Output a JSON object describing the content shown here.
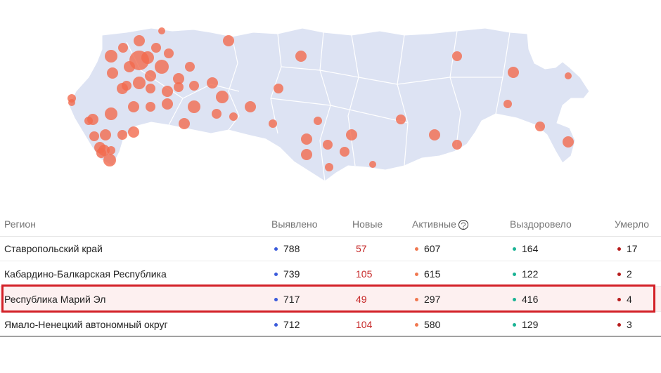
{
  "colors": {
    "map_fill": "#dde3f3",
    "bubble": "#f26a4e",
    "confirmed": "#3b5bdb",
    "new": "#c62828",
    "active": "#f07850",
    "recovered": "#1ab394",
    "deaths": "#b71c1c",
    "highlight": "#d32027"
  },
  "icons": {
    "help": "question-circle-icon"
  },
  "table": {
    "headers": {
      "region": "Регион",
      "confirmed": "Выявлено",
      "new": "Новые",
      "active": "Активные",
      "recovered": "Выздоровело",
      "deaths": "Умерло",
      "help": "?"
    },
    "rows": [
      {
        "region": "Ставропольский край",
        "confirmed": "788",
        "new": "57",
        "active": "607",
        "recovered": "164",
        "deaths": "17"
      },
      {
        "region": "Кабардино-Балкарская Республика",
        "confirmed": "739",
        "new": "105",
        "active": "615",
        "recovered": "122",
        "deaths": "2"
      },
      {
        "region": "Республика Марий Эл",
        "confirmed": "717",
        "new": "49",
        "active": "297",
        "recovered": "416",
        "deaths": "4",
        "highlighted": true
      },
      {
        "region": "Ямало-Ненецкий автономный округ",
        "confirmed": "712",
        "new": "104",
        "active": "580",
        "recovered": "129",
        "deaths": "3"
      }
    ]
  }
}
